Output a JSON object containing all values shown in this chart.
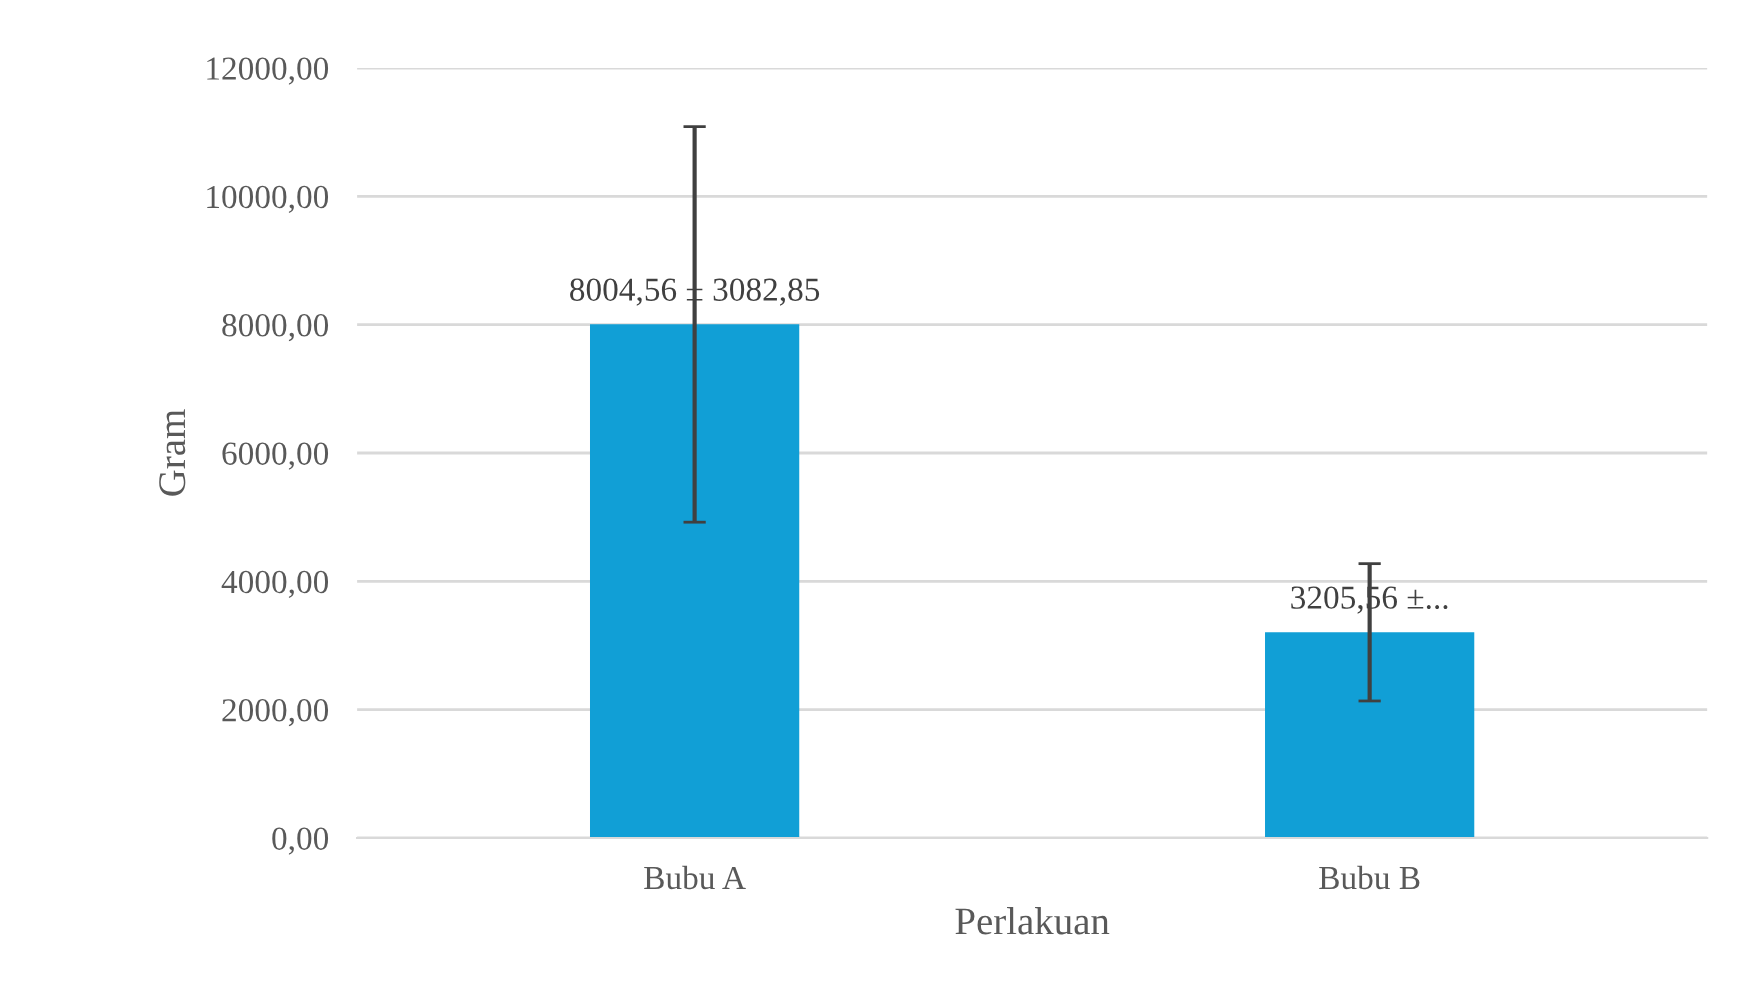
{
  "chart_data": {
    "type": "bar",
    "xlabel": "Perlakuan",
    "ylabel": "Gram",
    "categories": [
      "Bubu A",
      "Bubu B"
    ],
    "values": [
      8004.56,
      3205.56
    ],
    "errors": [
      3082.85,
      1070
    ],
    "value_labels": [
      "8004,56 ± 3082,85",
      "3205,56 ±..."
    ],
    "color": "#119fd6",
    "ylim": [
      0,
      12000
    ],
    "yticks": [
      {
        "value": 0,
        "label": "0,00"
      },
      {
        "value": 2000,
        "label": "2000,00"
      },
      {
        "value": 4000,
        "label": "4000,00"
      },
      {
        "value": 6000,
        "label": "6000,00"
      },
      {
        "value": 8000,
        "label": "8000,00"
      },
      {
        "value": 10000,
        "label": "10000,00"
      },
      {
        "value": 12000,
        "label": "12000,00"
      }
    ],
    "grid": "y",
    "legend": false
  }
}
